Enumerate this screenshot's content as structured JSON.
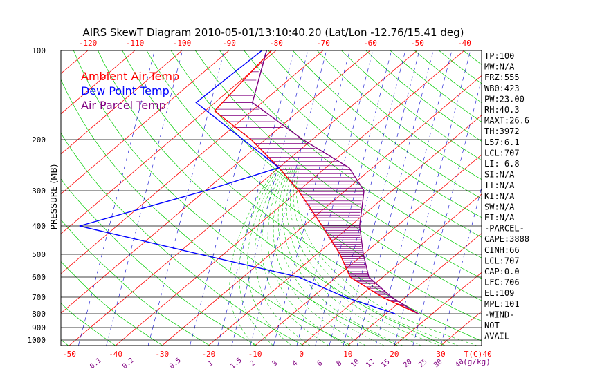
{
  "chart_data": {
    "type": "skew-t",
    "title": "AIRS SkewT Diagram 2010-05-01/13:10:40.20 (Lat/Lon -12.76/15.41 deg)",
    "ylabel": "PRESSURE (MB)",
    "xlabel_temp": "T(C)",
    "xlabel_mixing": "(g/kg)",
    "pressure_ticks": [
      100,
      200,
      300,
      400,
      500,
      600,
      700,
      800,
      900,
      1000
    ],
    "bottom_temp_ticks": [
      -50,
      -40,
      -30,
      -20,
      -10,
      0,
      10,
      20,
      30,
      40
    ],
    "top_temp_ticks": [
      -120,
      -110,
      -100,
      -90,
      -80,
      -70,
      -60,
      -50,
      -40
    ],
    "mixing_ratio_ticks": [
      "0.1",
      "0.2",
      "0.5",
      "1",
      "1.5",
      "2",
      "3",
      "4",
      "6",
      "8",
      "10",
      "12",
      "15",
      "20",
      "25",
      "30",
      "40"
    ],
    "legend": [
      {
        "name": "Ambient Air Temp",
        "color": "#ff0000"
      },
      {
        "name": "Dew Point Temp",
        "color": "#0000ff"
      },
      {
        "name": "Air Parcel Temp",
        "color": "#800080"
      }
    ],
    "series": [
      {
        "name": "Ambient Air Temp",
        "color": "#ff0000",
        "points": [
          [
            100,
            -81
          ],
          [
            160,
            -78
          ],
          [
            200,
            -63
          ],
          [
            250,
            -50
          ],
          [
            300,
            -40
          ],
          [
            400,
            -26
          ],
          [
            500,
            -15
          ],
          [
            600,
            -7
          ],
          [
            700,
            5
          ],
          [
            800,
            17
          ]
        ]
      },
      {
        "name": "Dew Point Temp",
        "color": "#0000ff",
        "points": [
          [
            100,
            -83
          ],
          [
            150,
            -84
          ],
          [
            250,
            -50
          ],
          [
            300,
            -60
          ],
          [
            400,
            -78
          ],
          [
            500,
            -45
          ],
          [
            600,
            -18
          ],
          [
            700,
            -3
          ],
          [
            800,
            12
          ]
        ]
      },
      {
        "name": "Air Parcel Temp",
        "color": "#800080",
        "points": [
          [
            100,
            -82
          ],
          [
            150,
            -72
          ],
          [
            200,
            -52
          ],
          [
            250,
            -35
          ],
          [
            300,
            -26
          ],
          [
            400,
            -18
          ],
          [
            500,
            -10
          ],
          [
            600,
            -3
          ],
          [
            700,
            7
          ],
          [
            800,
            17
          ]
        ]
      }
    ],
    "stats": [
      "TP:100",
      "MW:N/A",
      "FRZ:555",
      "WB0:423",
      "PW:23.00",
      "RH:40.3",
      "MAXT:26.6",
      "TH:3972",
      "L57:6.1",
      "LCL:707",
      "LI:-6.8",
      "SI:N/A",
      "TT:N/A",
      "KI:N/A",
      "SW:N/A",
      "EI:N/A",
      "-PARCEL-",
      "CAPE:3888",
      "CINH:66",
      "LCL:707",
      "CAP:0.0",
      "LFC:706",
      "EL:109",
      "MPL:101",
      "-WIND-",
      "NOT",
      "AVAIL"
    ],
    "colors": {
      "isotherm": "#ff0000",
      "dry_adiabat": "#00cc00",
      "moist_adiabat": "#00cc00",
      "mixing_ratio": "#0000cd",
      "isobar": "#000000",
      "axis_labels": "#ff0000",
      "mixing_labels": "#800080",
      "cape_hatch": "#800080",
      "text": "#000000"
    },
    "grid": true,
    "legend_placement": "top-left"
  }
}
